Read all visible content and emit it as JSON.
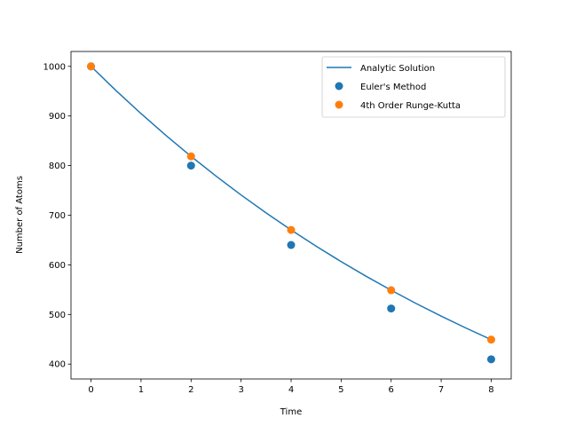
{
  "chart_data": {
    "type": "line",
    "title": "",
    "xlabel": "Time",
    "ylabel": "Number of Atoms",
    "xlim": [
      -0.4,
      8.4
    ],
    "ylim": [
      370,
      1030
    ],
    "xticks": [
      0,
      1,
      2,
      3,
      4,
      5,
      6,
      7,
      8
    ],
    "yticks": [
      400,
      500,
      600,
      700,
      800,
      900,
      1000
    ],
    "grid": false,
    "legend_position": "top-right",
    "series": [
      {
        "name": "Analytic Solution",
        "kind": "line",
        "color": "#1f77b4",
        "x": [
          0,
          0.5,
          1,
          1.5,
          2,
          2.5,
          3,
          3.5,
          4,
          4.5,
          5,
          5.5,
          6,
          6.5,
          7,
          7.5,
          8
        ],
        "y": [
          1000,
          951.2,
          904.8,
          860.7,
          818.7,
          778.8,
          740.8,
          704.7,
          670.3,
          637.6,
          606.5,
          576.9,
          548.8,
          522.0,
          496.6,
          472.4,
          449.3
        ]
      },
      {
        "name": "Euler's Method",
        "kind": "scatter",
        "color": "#1f77b4",
        "x": [
          0,
          2,
          4,
          6,
          8
        ],
        "y": [
          1000,
          800,
          640,
          512,
          409.6
        ]
      },
      {
        "name": "4th Order Runge-Kutta",
        "kind": "scatter",
        "color": "#ff7f0e",
        "x": [
          0,
          2,
          4,
          6,
          8
        ],
        "y": [
          1000,
          818.7,
          670.3,
          548.8,
          449.3
        ]
      }
    ]
  }
}
